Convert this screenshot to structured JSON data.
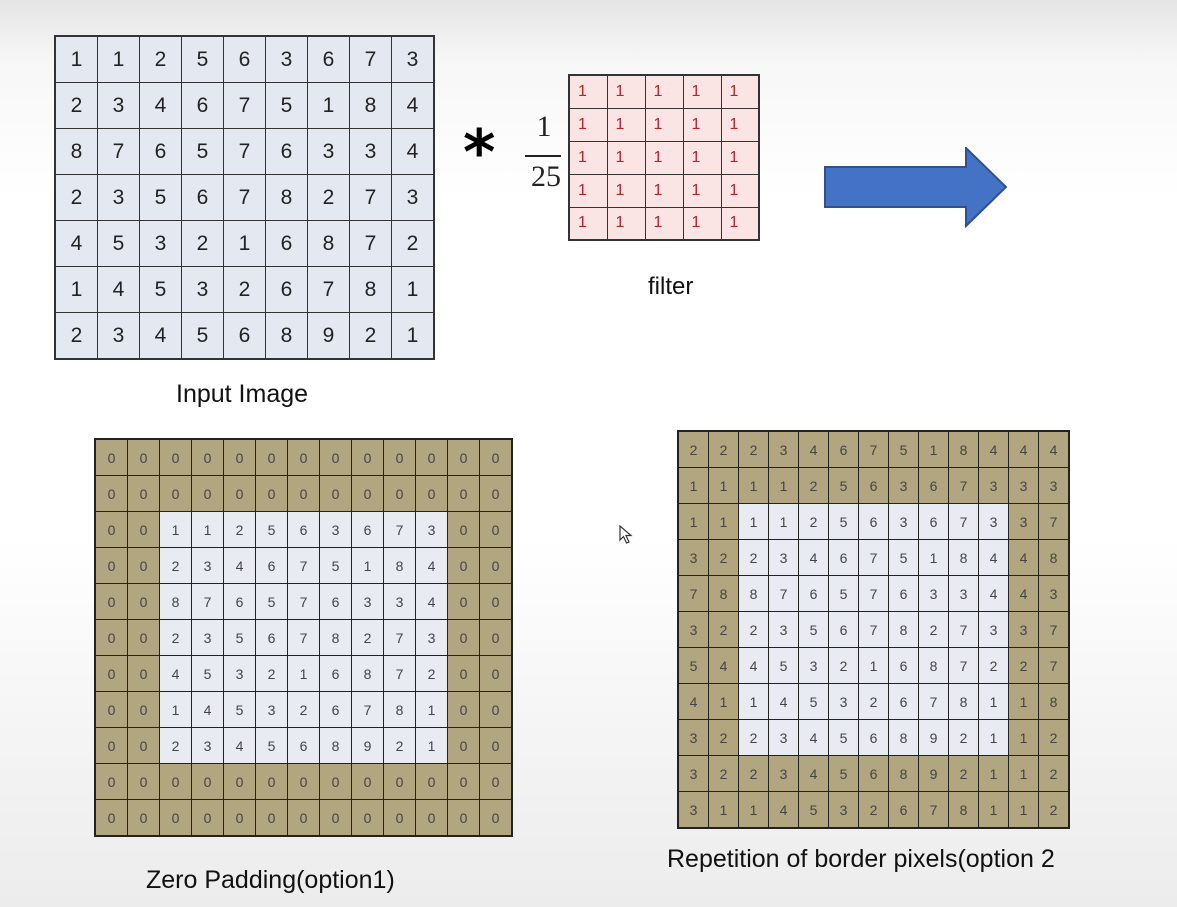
{
  "input_image": {
    "label": "Input Image",
    "rows": [
      [
        1,
        1,
        2,
        5,
        6,
        3,
        6,
        7,
        3
      ],
      [
        2,
        3,
        4,
        6,
        7,
        5,
        1,
        8,
        4
      ],
      [
        8,
        7,
        6,
        5,
        7,
        6,
        3,
        3,
        4
      ],
      [
        2,
        3,
        5,
        6,
        7,
        8,
        2,
        7,
        3
      ],
      [
        4,
        5,
        3,
        2,
        1,
        6,
        8,
        7,
        2
      ],
      [
        1,
        4,
        5,
        3,
        2,
        6,
        7,
        8,
        1
      ],
      [
        2,
        3,
        4,
        5,
        6,
        8,
        9,
        2,
        1
      ]
    ]
  },
  "operator": {
    "symbol": "*",
    "numerator": "1",
    "denominator": "25"
  },
  "filter": {
    "label": "filter",
    "rows": [
      [
        1,
        1,
        1,
        1,
        1
      ],
      [
        1,
        1,
        1,
        1,
        1
      ],
      [
        1,
        1,
        1,
        1,
        1
      ],
      [
        1,
        1,
        1,
        1,
        1
      ],
      [
        1,
        1,
        1,
        1,
        1
      ]
    ]
  },
  "zero_padding": {
    "label": "Zero Padding(option1)",
    "padding": 2,
    "rows": [
      [
        0,
        0,
        0,
        0,
        0,
        0,
        0,
        0,
        0,
        0,
        0,
        0,
        0
      ],
      [
        0,
        0,
        0,
        0,
        0,
        0,
        0,
        0,
        0,
        0,
        0,
        0,
        0
      ],
      [
        0,
        0,
        1,
        1,
        2,
        5,
        6,
        3,
        6,
        7,
        3,
        0,
        0
      ],
      [
        0,
        0,
        2,
        3,
        4,
        6,
        7,
        5,
        1,
        8,
        4,
        0,
        0
      ],
      [
        0,
        0,
        8,
        7,
        6,
        5,
        7,
        6,
        3,
        3,
        4,
        0,
        0
      ],
      [
        0,
        0,
        2,
        3,
        5,
        6,
        7,
        8,
        2,
        7,
        3,
        0,
        0
      ],
      [
        0,
        0,
        4,
        5,
        3,
        2,
        1,
        6,
        8,
        7,
        2,
        0,
        0
      ],
      [
        0,
        0,
        1,
        4,
        5,
        3,
        2,
        6,
        7,
        8,
        1,
        0,
        0
      ],
      [
        0,
        0,
        2,
        3,
        4,
        5,
        6,
        8,
        9,
        2,
        1,
        0,
        0
      ],
      [
        0,
        0,
        0,
        0,
        0,
        0,
        0,
        0,
        0,
        0,
        0,
        0,
        0
      ],
      [
        0,
        0,
        0,
        0,
        0,
        0,
        0,
        0,
        0,
        0,
        0,
        0,
        0
      ]
    ]
  },
  "border_repetition": {
    "label": "Repetition of border pixels(option 2",
    "padding": 2,
    "rows": [
      [
        2,
        2,
        2,
        3,
        4,
        6,
        7,
        5,
        1,
        8,
        4,
        4,
        4
      ],
      [
        1,
        1,
        1,
        1,
        2,
        5,
        6,
        3,
        6,
        7,
        3,
        3,
        3
      ],
      [
        1,
        1,
        1,
        1,
        2,
        5,
        6,
        3,
        6,
        7,
        3,
        3,
        7
      ],
      [
        3,
        2,
        2,
        3,
        4,
        6,
        7,
        5,
        1,
        8,
        4,
        4,
        8
      ],
      [
        7,
        8,
        8,
        7,
        6,
        5,
        7,
        6,
        3,
        3,
        4,
        4,
        3
      ],
      [
        3,
        2,
        2,
        3,
        5,
        6,
        7,
        8,
        2,
        7,
        3,
        3,
        7
      ],
      [
        5,
        4,
        4,
        5,
        3,
        2,
        1,
        6,
        8,
        7,
        2,
        2,
        7
      ],
      [
        4,
        1,
        1,
        4,
        5,
        3,
        2,
        6,
        7,
        8,
        1,
        1,
        8
      ],
      [
        3,
        2,
        2,
        3,
        4,
        5,
        6,
        8,
        9,
        2,
        1,
        1,
        2
      ],
      [
        3,
        2,
        2,
        3,
        4,
        5,
        6,
        8,
        9,
        2,
        1,
        1,
        2
      ],
      [
        3,
        1,
        1,
        4,
        5,
        3,
        2,
        6,
        7,
        8,
        1,
        1,
        2
      ]
    ]
  },
  "colors": {
    "input_cell": "#e4e9f1",
    "filter_cell": "#fbe4e4",
    "filter_text": "#b8232b",
    "padding_cell": "#b1a67f",
    "arrow_fill": "#4472c4"
  },
  "icons": {
    "arrow": "right-arrow-icon",
    "cursor": "mouse-cursor-icon"
  }
}
